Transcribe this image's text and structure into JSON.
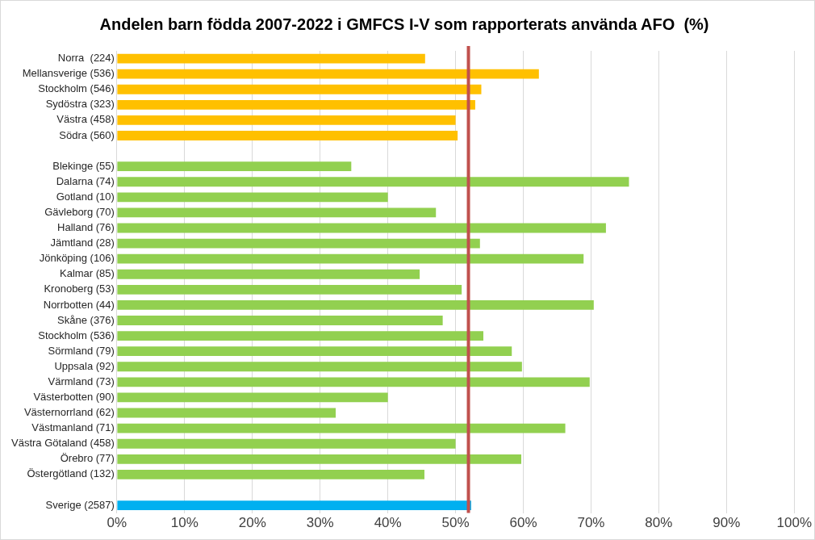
{
  "chart_data": {
    "type": "bar",
    "orientation": "horizontal",
    "title": "Andelen barn födda 2007-2022 i GMFCS I-V som rapporterats använda AFO  (%)",
    "categories": [
      "Norra  (224)",
      "Mellansverige (536)",
      "Stockholm (546)",
      "Sydöstra (323)",
      "Västra (458)",
      "Södra (560)",
      null,
      "Blekinge (55)",
      "Dalarna (74)",
      "Gotland (10)",
      "Gävleborg (70)",
      "Halland (76)",
      "Jämtland (28)",
      "Jönköping (106)",
      "Kalmar (85)",
      "Kronoberg (53)",
      "Norrbotten (44)",
      "Skåne (376)",
      "Stockholm (536)",
      "Sörmland (79)",
      "Uppsala (92)",
      "Värmland (73)",
      "Västerbotten (90)",
      "Västernorrland (62)",
      "Västmanland (71)",
      "Västra Götaland (458)",
      "Örebro (77)",
      "Östergötland (132)",
      null,
      "Sverige (2587)"
    ],
    "values": [
      45.5,
      62.3,
      53.8,
      52.9,
      50.0,
      50.3,
      null,
      34.6,
      75.6,
      40.0,
      47.1,
      72.2,
      53.6,
      68.9,
      44.7,
      50.9,
      70.4,
      48.1,
      54.1,
      58.3,
      59.8,
      69.8,
      40.0,
      32.3,
      66.2,
      50.0,
      59.7,
      45.4,
      null,
      52.3
    ],
    "colors": [
      "#ffc000",
      "#ffc000",
      "#ffc000",
      "#ffc000",
      "#ffc000",
      "#ffc000",
      "#ffc000",
      "#92d050",
      "#92d050",
      "#92d050",
      "#92d050",
      "#92d050",
      "#92d050",
      "#92d050",
      "#92d050",
      "#92d050",
      "#92d050",
      "#92d050",
      "#92d050",
      "#92d050",
      "#92d050",
      "#92d050",
      "#92d050",
      "#92d050",
      "#92d050",
      "#92d050",
      "#92d050",
      "#92d050",
      "#92d050",
      "#00b0f0"
    ],
    "xlim": [
      0,
      100
    ],
    "xticks": [
      {
        "value": 0,
        "label": "0%"
      },
      {
        "value": 10,
        "label": "10%"
      },
      {
        "value": 20,
        "label": "20%"
      },
      {
        "value": 30,
        "label": "30%"
      },
      {
        "value": 40,
        "label": "40%"
      },
      {
        "value": 50,
        "label": "50%"
      },
      {
        "value": 60,
        "label": "60%"
      },
      {
        "value": 70,
        "label": "70%"
      },
      {
        "value": 80,
        "label": "80%"
      },
      {
        "value": 90,
        "label": "90%"
      },
      {
        "value": 100,
        "label": "100%"
      }
    ],
    "ref_lines": [
      {
        "axis": "x",
        "value": 51.9,
        "color": "#c0504d"
      }
    ],
    "grid": "x",
    "legend": false
  }
}
